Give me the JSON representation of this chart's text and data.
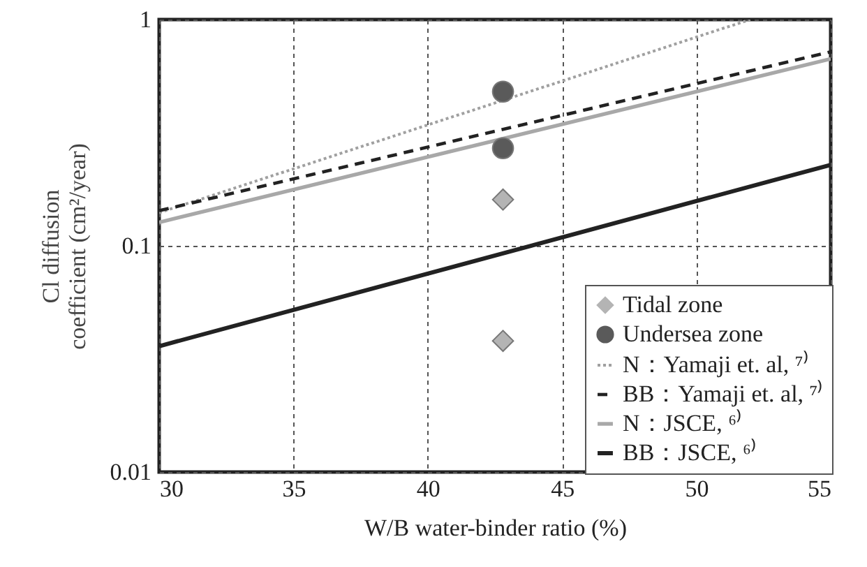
{
  "chart_data": {
    "type": "line",
    "xlabel": "W/B water-binder ratio (%)",
    "ylabel": "Cl diffusion\ncoefficient (cm²/year)",
    "xlim": [
      30,
      55
    ],
    "xticks": [
      30,
      35,
      40,
      45,
      50,
      55
    ],
    "ylim": [
      0.01,
      1
    ],
    "yticks": [
      0.01,
      0.1,
      1
    ],
    "log": "y",
    "grid": true,
    "legend": "bottom right",
    "series": [
      {
        "type": "scatter",
        "name": "Tidal zone",
        "color": "#b4b4b4",
        "marker": "diamond",
        "x": [
          42.8,
          42.8
        ],
        "values": [
          0.16,
          0.038
        ]
      },
      {
        "type": "scatter",
        "name": "Undersea zone",
        "color": "#5a5a5a",
        "marker": "circle",
        "x": [
          42.8,
          42.8
        ],
        "values": [
          0.48,
          0.27
        ]
      },
      {
        "type": "line",
        "name": "N：Yamaji et. al, ⁷⁾",
        "color": "#a0a0a0",
        "line_style": "dotted",
        "x": [
          30,
          52
        ],
        "values": [
          0.14,
          1
        ]
      },
      {
        "type": "line",
        "name": "BB：Yamaji et. al, ⁷⁾",
        "color": "#222222",
        "line_style": "dashed",
        "x": [
          30,
          55
        ],
        "values": [
          0.143,
          0.72
        ]
      },
      {
        "type": "line",
        "name": "N：JSCE, ⁶⁾",
        "color": "#a8a8a8",
        "line_style": "solid",
        "x": [
          30,
          55
        ],
        "values": [
          0.127,
          0.67
        ]
      },
      {
        "type": "line",
        "name": "BB：JSCE, ⁶⁾",
        "color": "#222222",
        "line_style": "solid",
        "x": [
          30,
          55
        ],
        "values": [
          0.036,
          0.228
        ]
      }
    ]
  }
}
